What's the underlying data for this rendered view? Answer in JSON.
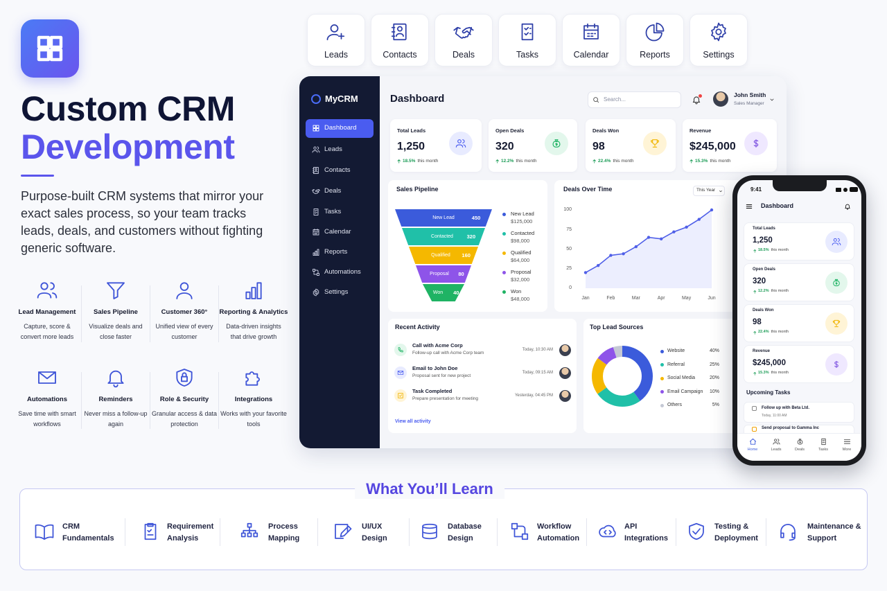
{
  "hero": {
    "title_line1": "Custom CRM",
    "title_line2": "Development",
    "description": "Purpose-built CRM systems that mirror your exact sales process, so your team tracks leads, deals, and customers without fighting generic software."
  },
  "features": [
    {
      "title": "Lead Management",
      "description": "Capture, score & convert more leads"
    },
    {
      "title": "Sales Pipeline",
      "description": "Visualize deals and close faster"
    },
    {
      "title": "Customer 360°",
      "description": "Unified view of every customer"
    },
    {
      "title": "Reporting & Analytics",
      "description": "Data-driven insights that drive growth"
    },
    {
      "title": "Automations",
      "description": "Save time with smart workflows"
    },
    {
      "title": "Reminders",
      "description": "Never miss a follow-up again"
    },
    {
      "title": "Role & Security",
      "description": "Granular access & data protection"
    },
    {
      "title": "Integrations",
      "description": "Works with your favorite tools"
    }
  ],
  "top_nav": [
    "Leads",
    "Contacts",
    "Deals",
    "Tasks",
    "Calendar",
    "Reports",
    "Settings"
  ],
  "dashboard": {
    "brand": "MyCRM",
    "sidebar": [
      "Dashboard",
      "Leads",
      "Contacts",
      "Deals",
      "Tasks",
      "Calendar",
      "Reports",
      "Automations",
      "Settings"
    ],
    "title": "Dashboard",
    "search_placeholder": "Search...",
    "user": {
      "name": "John Smith",
      "role": "Sales Manager"
    },
    "stats": [
      {
        "label": "Total Leads",
        "value": "1,250",
        "change": "18.5%",
        "period": "this month"
      },
      {
        "label": "Open Deals",
        "value": "320",
        "change": "12.2%",
        "period": "this month"
      },
      {
        "label": "Deals Won",
        "value": "98",
        "change": "22.4%",
        "period": "this month"
      },
      {
        "label": "Revenue",
        "value": "$245,000",
        "change": "15.3%",
        "period": "this month"
      }
    ],
    "sales_pipeline": {
      "title": "Sales Pipeline",
      "stages": [
        {
          "name": "New Lead",
          "count": 450,
          "amount": "$125,000"
        },
        {
          "name": "Contacted",
          "count": 320,
          "amount": "$98,000"
        },
        {
          "name": "Qualified",
          "count": 160,
          "amount": "$64,000"
        },
        {
          "name": "Proposal",
          "count": 80,
          "amount": "$32,000"
        },
        {
          "name": "Won",
          "count": 40,
          "amount": "$48,000"
        }
      ]
    },
    "deals_over_time": {
      "title": "Deals Over Time",
      "period": "This Year",
      "chart": {
        "type": "line",
        "categories": [
          "Jan",
          null,
          "Feb",
          null,
          "Mar",
          null,
          "Apr",
          null,
          "May",
          null,
          "Jun"
        ],
        "values": [
          20,
          29,
          42,
          44,
          53,
          65,
          63,
          72,
          78,
          88,
          100
        ],
        "ylim": [
          0,
          100
        ],
        "yticks": [
          0,
          25,
          50,
          75,
          100
        ],
        "color": "#4f5fe8"
      }
    },
    "recent_activity": {
      "title": "Recent Activity",
      "items": [
        {
          "title": "Call with Acme Corp",
          "detail": "Follow-up call with Acme Corp team",
          "time": "Today, 10:30 AM"
        },
        {
          "title": "Email to John Doe",
          "detail": "Proposal sent for new project",
          "time": "Today, 09:15 AM"
        },
        {
          "title": "Task Completed",
          "detail": "Prepare presentation for meeting",
          "time": "Yesterday, 04:45 PM"
        }
      ],
      "link": "View all activity"
    },
    "top_lead_sources": {
      "title": "Top Lead Sources",
      "chart": {
        "type": "pie",
        "categories": [
          "Website",
          "Referral",
          "Social Media",
          "Email Campaign",
          "Others"
        ],
        "values": [
          40,
          25,
          20,
          10,
          5
        ],
        "value_labels": [
          "40%",
          "25%",
          "20%",
          "10%",
          "5%"
        ],
        "colors": [
          "#3b5bdb",
          "#20c0a8",
          "#f5b800",
          "#8e54e9",
          "#c4c8d4"
        ]
      }
    }
  },
  "mobile": {
    "time": "9:41",
    "title": "Dashboard",
    "upcoming_title": "Upcoming Tasks",
    "tasks": [
      {
        "title": "Follow up with Beta Ltd.",
        "time": "Today, 11:00 AM"
      },
      {
        "title": "Send proposal to Gamma Inc"
      }
    ],
    "nav": [
      "Home",
      "Leads",
      "Deals",
      "Tasks",
      "More"
    ]
  },
  "learn": {
    "title": "What You’ll Learn",
    "items": [
      "CRM Fundamentals",
      "Requirement Analysis",
      "Process Mapping",
      "UI/UX Design",
      "Database Design",
      "Workflow Automation",
      "API Integrations",
      "Testing & Deployment",
      "Maintenance & Support"
    ]
  }
}
